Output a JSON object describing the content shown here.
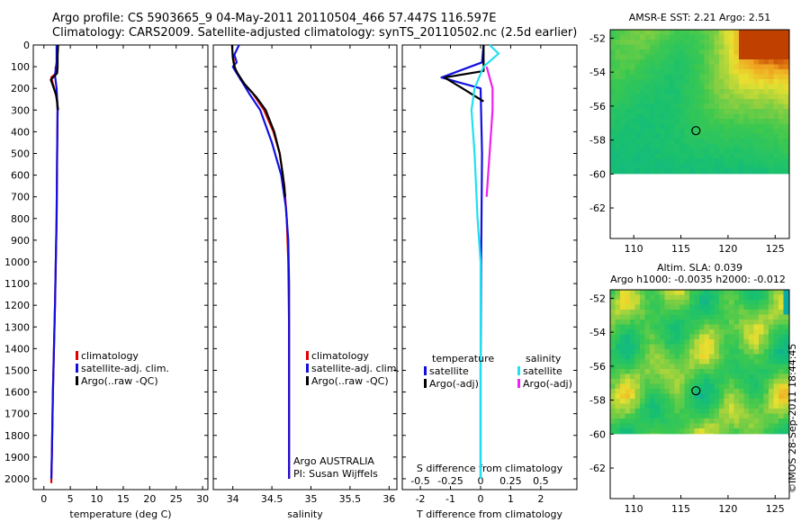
{
  "header": {
    "line1": "Argo profile: CS 5903665_9 04-May-2011 20110504_466 57.447S 116.597E",
    "line2": "Climatology: CARS2009. Satellite-adjusted climatology: synTS_20110502.nc (2.5d earlier)"
  },
  "credit": "©IMOS 28-Sep-2011 18:44:45",
  "colors": {
    "climatology": "#e00000",
    "satellite": "#1010e0",
    "argo": "#000000",
    "cyan": "#20e0f0",
    "magenta": "#f020f0"
  },
  "chart_data": [
    {
      "id": "temperature",
      "type": "line",
      "xlabel": "temperature (deg C)",
      "ylabel": "",
      "xlim": [
        -2,
        31
      ],
      "ylim": [
        2050,
        0
      ],
      "xticks": [
        0,
        5,
        10,
        15,
        20,
        25,
        30
      ],
      "yticks": [
        0,
        100,
        200,
        300,
        400,
        500,
        600,
        700,
        800,
        900,
        1000,
        1100,
        1200,
        1300,
        1400,
        1500,
        1600,
        1700,
        1800,
        1900,
        2000
      ],
      "legend": [
        "climatology",
        "satellite-adj. clim.",
        "Argo(..raw -QC)"
      ],
      "series": [
        {
          "name": "climatology",
          "color": "#e00000",
          "points": [
            [
              2.2,
              100
            ],
            [
              2.3,
              130
            ],
            [
              1.4,
              150
            ],
            [
              1.6,
              170
            ],
            [
              2.5,
              250
            ],
            [
              2.6,
              300
            ],
            [
              2.5,
              500
            ],
            [
              2.4,
              800
            ],
            [
              2.1,
              1200
            ],
            [
              1.7,
              1600
            ],
            [
              1.5,
              1900
            ],
            [
              1.4,
              2020
            ]
          ]
        },
        {
          "name": "satellite-adj. clim.",
          "color": "#1010e0",
          "points": [
            [
              2.4,
              0
            ],
            [
              2.4,
              80
            ],
            [
              2.1,
              140
            ],
            [
              2.4,
              200
            ],
            [
              2.6,
              300
            ],
            [
              2.5,
              500
            ],
            [
              2.4,
              800
            ],
            [
              2.1,
              1200
            ],
            [
              1.7,
              1600
            ],
            [
              1.5,
              1900
            ],
            [
              1.4,
              2000
            ]
          ]
        },
        {
          "name": "Argo(..raw -QC)",
          "color": "#000000",
          "points": [
            [
              2.7,
              0
            ],
            [
              2.6,
              50
            ],
            [
              2.6,
              100
            ],
            [
              2.5,
              130
            ],
            [
              1.3,
              160
            ],
            [
              1.6,
              180
            ],
            [
              2.3,
              230
            ],
            [
              2.7,
              300
            ]
          ]
        }
      ]
    },
    {
      "id": "salinity",
      "type": "line",
      "xlabel": "salinity",
      "xlim": [
        33.75,
        36.1
      ],
      "ylim": [
        2050,
        0
      ],
      "xticks": [
        34,
        34.5,
        35,
        35.5,
        36
      ],
      "legend": [
        "climatology",
        "satellite-adj. clim.",
        "Argo(..raw -QC)"
      ],
      "annotation": [
        "Argo AUSTRALIA",
        "PI: Susan Wijffels"
      ],
      "series": [
        {
          "name": "climatology",
          "color": "#e00000",
          "points": [
            [
              34.0,
              50
            ],
            [
              34.03,
              110
            ],
            [
              34.1,
              160
            ],
            [
              34.25,
              220
            ],
            [
              34.4,
              300
            ],
            [
              34.52,
              400
            ],
            [
              34.6,
              500
            ],
            [
              34.66,
              650
            ],
            [
              34.69,
              800
            ],
            [
              34.71,
              1000
            ],
            [
              34.72,
              1300
            ],
            [
              34.72,
              1700
            ],
            [
              34.72,
              2000
            ]
          ]
        },
        {
          "name": "satellite-adj. clim.",
          "color": "#1010e0",
          "points": [
            [
              34.08,
              0
            ],
            [
              34.02,
              45
            ],
            [
              34.05,
              80
            ],
            [
              34.0,
              100
            ],
            [
              34.05,
              130
            ],
            [
              34.12,
              170
            ],
            [
              34.22,
              230
            ],
            [
              34.35,
              300
            ],
            [
              34.5,
              450
            ],
            [
              34.62,
              600
            ],
            [
              34.68,
              750
            ],
            [
              34.71,
              900
            ],
            [
              34.72,
              1100
            ],
            [
              34.72,
              1500
            ],
            [
              34.72,
              2000
            ]
          ]
        },
        {
          "name": "Argo(..raw -QC)",
          "color": "#000000",
          "points": [
            [
              33.99,
              0
            ],
            [
              34.0,
              60
            ],
            [
              34.02,
              100
            ],
            [
              34.06,
              130
            ],
            [
              34.15,
              180
            ],
            [
              34.3,
              240
            ],
            [
              34.42,
              300
            ],
            [
              34.53,
              400
            ],
            [
              34.6,
              500
            ],
            [
              34.64,
              600
            ],
            [
              34.67,
              700
            ]
          ]
        }
      ]
    },
    {
      "id": "difference",
      "type": "line",
      "xlabel": "T difference from climatology",
      "xlabel_top": "S difference from climatology",
      "xlim": [
        -2.6,
        3.2
      ],
      "ylim": [
        2050,
        0
      ],
      "xticks": [
        -2,
        -1,
        0,
        1,
        2
      ],
      "xticklabels": [
        "-2",
        "-1",
        "0",
        "1",
        "2"
      ],
      "xticks_top": [
        -2,
        -1,
        0,
        1,
        2
      ],
      "xticklabels_top": [
        "-0.5",
        "-0.25",
        "0",
        "0.25",
        "0.5"
      ],
      "legend_groups": [
        {
          "title": "temperature",
          "items": [
            "satellite",
            "Argo(-adj)"
          ]
        },
        {
          "title": "salinity",
          "items": [
            "satellite",
            "Argo(-adj)"
          ]
        }
      ],
      "series": [
        {
          "name": "temperature satellite",
          "color": "#1010e0",
          "points": [
            [
              0.1,
              0
            ],
            [
              0.05,
              80
            ],
            [
              -1.3,
              150
            ],
            [
              0.0,
              200
            ],
            [
              0.05,
              500
            ],
            [
              0.02,
              1000
            ],
            [
              0.0,
              1500
            ],
            [
              0.0,
              2000
            ]
          ]
        },
        {
          "name": "temperature Argo(-adj)",
          "color": "#000000",
          "points": [
            [
              0.1,
              0
            ],
            [
              0.1,
              120
            ],
            [
              -1.2,
              150
            ],
            [
              -0.6,
              200
            ],
            [
              0.1,
              260
            ]
          ]
        },
        {
          "name": "salinity satellite",
          "color": "#20e0f0",
          "points": [
            [
              0.3,
              0
            ],
            [
              0.6,
              40
            ],
            [
              0.1,
              100
            ],
            [
              -0.2,
              200
            ],
            [
              -0.3,
              300
            ],
            [
              -0.2,
              500
            ],
            [
              -0.1,
              800
            ],
            [
              0.0,
              1000
            ],
            [
              0.0,
              2000
            ]
          ]
        },
        {
          "name": "salinity Argo(-adj)",
          "color": "#f020f0",
          "points": [
            [
              0.2,
              100
            ],
            [
              0.4,
              200
            ],
            [
              0.4,
              300
            ],
            [
              0.3,
              500
            ],
            [
              0.2,
              700
            ]
          ]
        }
      ]
    }
  ],
  "maps": [
    {
      "id": "sst",
      "title": "AMSR-E SST: 2.21  Argo: 2.51",
      "title2": "",
      "lon_ticks": [
        110,
        115,
        120,
        125
      ],
      "lat_ticks": [
        -52,
        -54,
        -56,
        -58,
        -60,
        -62
      ],
      "lon_range": [
        107.5,
        126.5
      ],
      "lat_range": [
        -51.5,
        -63.8
      ],
      "data_lat_limit": -60,
      "marker": {
        "lon": 116.597,
        "lat": -57.447
      }
    },
    {
      "id": "sla",
      "title": "Altim. SLA: 0.039",
      "title2": "Argo h1000: -0.0035  h2000: -0.012",
      "lon_ticks": [
        110,
        115,
        120,
        125
      ],
      "lat_ticks": [
        -52,
        -54,
        -56,
        -58,
        -60,
        -62
      ],
      "lon_range": [
        107.5,
        126.5
      ],
      "lat_range": [
        -51.5,
        -63.8
      ],
      "data_lat_limit": -60,
      "marker": {
        "lon": 116.597,
        "lat": -57.447
      }
    }
  ]
}
